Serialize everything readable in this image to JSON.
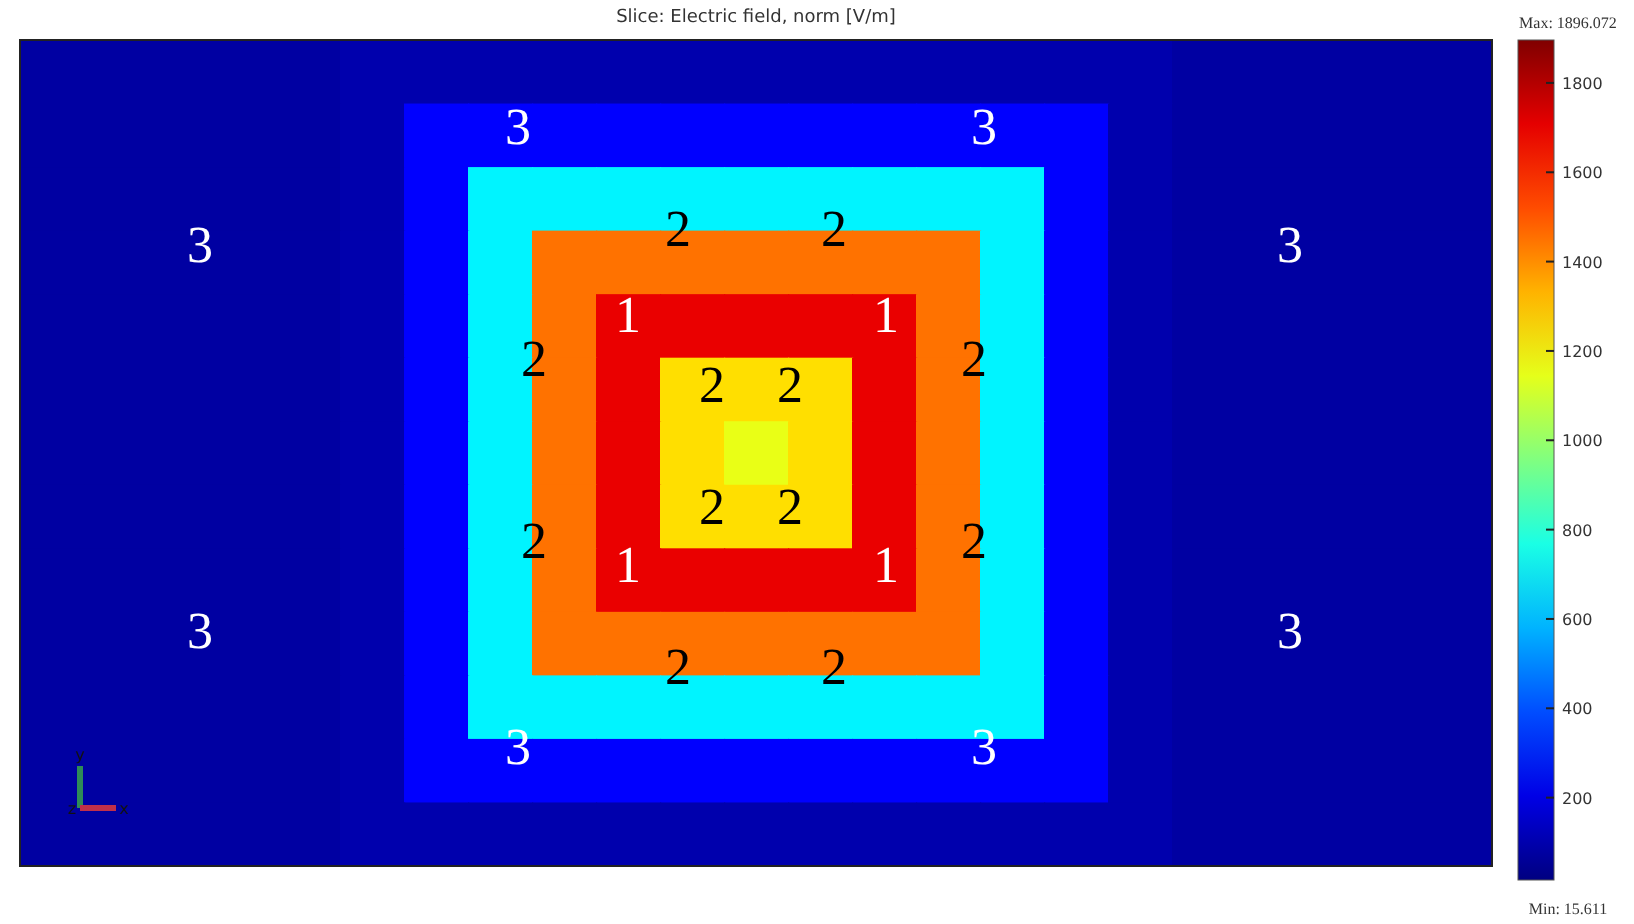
{
  "chart_data": {
    "type": "heatmap",
    "title": "Slice: Electric field, norm [V/m]",
    "categories": [
      null,
      null,
      null,
      null,
      null,
      null,
      null,
      null,
      null,
      null,
      null,
      null,
      null,
      null,
      null,
      null,
      null,
      null,
      null,
      null,
      null,
      null,
      null
    ],
    "y_categories": [
      null,
      null,
      null,
      null,
      null,
      null,
      null,
      null,
      null,
      null,
      null,
      null,
      null
    ],
    "cells": [
      [
        80,
        80,
        80,
        80,
        80,
        100,
        100,
        100,
        100,
        100,
        100,
        100,
        100,
        100,
        100,
        100,
        100,
        100,
        80,
        80,
        80,
        80,
        80
      ],
      [
        80,
        80,
        80,
        80,
        80,
        100,
        250,
        250,
        250,
        250,
        250,
        250,
        250,
        250,
        250,
        250,
        250,
        100,
        80,
        80,
        80,
        80,
        80
      ],
      [
        80,
        80,
        80,
        80,
        80,
        100,
        250,
        700,
        700,
        700,
        700,
        700,
        700,
        700,
        700,
        700,
        250,
        100,
        80,
        80,
        80,
        80,
        80
      ],
      [
        80,
        80,
        80,
        80,
        80,
        100,
        250,
        700,
        1450,
        1450,
        1450,
        1450,
        1450,
        1450,
        1450,
        700,
        250,
        100,
        80,
        80,
        80,
        80,
        80
      ],
      [
        80,
        80,
        80,
        80,
        80,
        100,
        250,
        700,
        1450,
        1700,
        1700,
        1700,
        1700,
        1700,
        1450,
        700,
        250,
        100,
        80,
        80,
        80,
        80,
        80
      ],
      [
        80,
        80,
        80,
        80,
        80,
        100,
        250,
        700,
        1450,
        1700,
        1250,
        1250,
        1250,
        1700,
        1450,
        700,
        250,
        100,
        80,
        80,
        80,
        80,
        80
      ],
      [
        80,
        80,
        80,
        80,
        80,
        100,
        250,
        700,
        1450,
        1700,
        1250,
        1150,
        1250,
        1700,
        1450,
        700,
        250,
        100,
        80,
        80,
        80,
        80,
        80
      ],
      [
        80,
        80,
        80,
        80,
        80,
        100,
        250,
        700,
        1450,
        1700,
        1250,
        1250,
        1250,
        1700,
        1450,
        700,
        250,
        100,
        80,
        80,
        80,
        80,
        80
      ],
      [
        80,
        80,
        80,
        80,
        80,
        100,
        250,
        700,
        1450,
        1700,
        1700,
        1700,
        1700,
        1700,
        1450,
        700,
        250,
        100,
        80,
        80,
        80,
        80,
        80
      ],
      [
        80,
        80,
        80,
        80,
        80,
        100,
        250,
        700,
        1450,
        1450,
        1450,
        1450,
        1450,
        1450,
        1450,
        700,
        250,
        100,
        80,
        80,
        80,
        80,
        80
      ],
      [
        80,
        80,
        80,
        80,
        80,
        100,
        250,
        700,
        700,
        700,
        700,
        700,
        700,
        700,
        700,
        700,
        250,
        100,
        80,
        80,
        80,
        80,
        80
      ],
      [
        80,
        80,
        80,
        80,
        80,
        100,
        250,
        250,
        250,
        250,
        250,
        250,
        250,
        250,
        250,
        250,
        250,
        100,
        80,
        80,
        80,
        80,
        80
      ],
      [
        80,
        80,
        80,
        80,
        80,
        100,
        100,
        100,
        100,
        100,
        100,
        100,
        100,
        100,
        100,
        100,
        100,
        100,
        80,
        80,
        80,
        80,
        80
      ]
    ],
    "clim": [
      15.611,
      1896.072
    ],
    "cticks": [
      200,
      400,
      600,
      800,
      1000,
      1200,
      1400,
      1600,
      1800
    ],
    "annotations": [
      "Max: 1896.072",
      "Min: 15.611",
      "3",
      "3",
      "3",
      "3",
      "3",
      "3",
      "3",
      "3",
      "2",
      "2",
      "2",
      "2",
      "2",
      "2",
      "2",
      "2",
      "2",
      "2",
      "2",
      "2",
      "1",
      "1",
      "1",
      "1",
      "y",
      "z",
      "x"
    ]
  }
}
